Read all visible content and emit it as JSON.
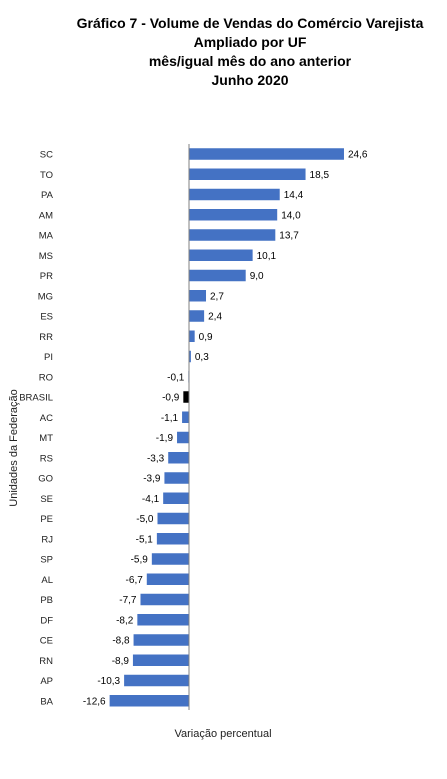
{
  "title_lines": [
    "Gráfico 7 - Volume de Vendas do Comércio Varejista",
    "Ampliado por UF",
    "mês/igual mês do ano anterior",
    "Junho 2020"
  ],
  "chart_data": {
    "type": "bar",
    "orientation": "horizontal",
    "title": "Gráfico 7 - Volume de Vendas do Comércio Varejista Ampliado por UF mês/igual mês do ano anterior Junho 2020",
    "xlabel": "Variação percentual",
    "ylabel": "Unidades da Federação",
    "categories": [
      "SC",
      "TO",
      "PA",
      "AM",
      "MA",
      "MS",
      "PR",
      "MG",
      "ES",
      "RR",
      "PI",
      "RO",
      "BRASIL",
      "AC",
      "MT",
      "RS",
      "GO",
      "SE",
      "PE",
      "RJ",
      "SP",
      "AL",
      "PB",
      "DF",
      "CE",
      "RN",
      "AP",
      "BA"
    ],
    "values": [
      24.6,
      18.5,
      14.4,
      14.0,
      13.7,
      10.1,
      9.0,
      2.7,
      2.4,
      0.9,
      0.3,
      -0.1,
      -0.9,
      -1.1,
      -1.9,
      -3.3,
      -3.9,
      -4.1,
      -5.0,
      -5.1,
      -5.9,
      -6.7,
      -7.7,
      -8.2,
      -8.8,
      -8.9,
      -10.3,
      -12.6
    ],
    "value_labels": [
      "24,6",
      "18,5",
      "14,4",
      "14,0",
      "13,7",
      "10,1",
      "9,0",
      "2,7",
      "2,4",
      "0,9",
      "0,3",
      "-0,1",
      "-0,9",
      "-1,1",
      "-1,9",
      "-3,3",
      "-3,9",
      "-4,1",
      "-5,0",
      "-5,1",
      "-5,9",
      "-6,7",
      "-7,7",
      "-8,2",
      "-8,8",
      "-8,9",
      "-10,3",
      "-12,6"
    ],
    "highlight_category": "BRASIL",
    "colors": {
      "bar": "#4472C4",
      "highlight": "#000000",
      "axis": "#808080"
    },
    "grid": false,
    "legend": "none"
  }
}
